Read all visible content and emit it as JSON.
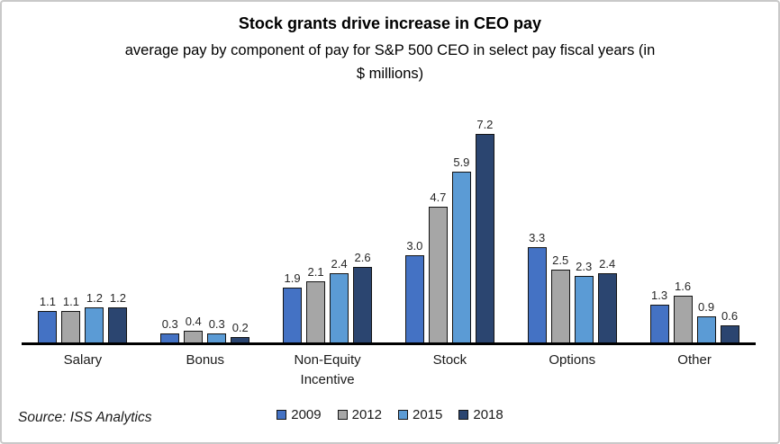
{
  "frame": {
    "background": "#ffffff",
    "border_color": "#c9c9c9"
  },
  "header": {
    "title": "Stock grants drive increase in CEO pay",
    "subtitle_line1": "average pay by component of pay for S&P 500 CEO in select pay fiscal years (in",
    "subtitle_line2": "$ millions)"
  },
  "footer": {
    "source": "Source: ISS Analytics"
  },
  "chart_data": {
    "type": "bar",
    "title": "Stock grants drive increase in CEO pay",
    "subtitle": "average pay by component of pay for S&P 500 CEO in select pay fiscal years (in $ millions)",
    "categories": [
      "Salary",
      "Bonus",
      "Non-Equity\nIncentive",
      "Stock",
      "Options",
      "Other"
    ],
    "series": [
      {
        "name": "2009",
        "color": "#4472C4",
        "values": [
          1.1,
          0.3,
          1.9,
          3.0,
          3.3,
          1.3
        ]
      },
      {
        "name": "2012",
        "color": "#A6A6A6",
        "values": [
          1.1,
          0.4,
          2.1,
          4.7,
          2.5,
          1.6
        ]
      },
      {
        "name": "2015",
        "color": "#5B9BD5",
        "values": [
          1.2,
          0.3,
          2.4,
          5.9,
          2.3,
          0.9
        ]
      },
      {
        "name": "2018",
        "color": "#2B4570",
        "values": [
          1.2,
          0.2,
          2.6,
          7.2,
          2.4,
          0.6
        ]
      }
    ],
    "value_labels": true,
    "value_label_decimals": 1,
    "ylim": [
      0,
      7.5
    ],
    "grid": false,
    "legend_position": "bottom",
    "bar_border_color": "#141414",
    "axis_color": "#000000"
  }
}
